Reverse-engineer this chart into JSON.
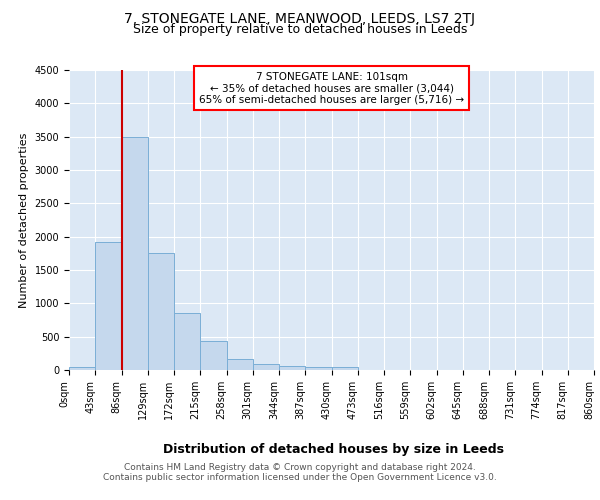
{
  "title_line1": "7, STONEGATE LANE, MEANWOOD, LEEDS, LS7 2TJ",
  "title_line2": "Size of property relative to detached houses in Leeds",
  "xlabel": "Distribution of detached houses by size in Leeds",
  "ylabel": "Number of detached properties",
  "bin_labels": [
    "0sqm",
    "43sqm",
    "86sqm",
    "129sqm",
    "172sqm",
    "215sqm",
    "258sqm",
    "301sqm",
    "344sqm",
    "387sqm",
    "430sqm",
    "473sqm",
    "516sqm",
    "559sqm",
    "602sqm",
    "645sqm",
    "688sqm",
    "731sqm",
    "774sqm",
    "817sqm",
    "860sqm"
  ],
  "bar_values": [
    50,
    1920,
    3500,
    1750,
    850,
    440,
    165,
    90,
    55,
    45,
    45,
    0,
    0,
    0,
    0,
    0,
    0,
    0,
    0,
    0
  ],
  "bar_color": "#c5d8ed",
  "bar_edge_color": "#7aaed6",
  "annotation_text": "7 STONEGATE LANE: 101sqm\n← 35% of detached houses are smaller (3,044)\n65% of semi-detached houses are larger (5,716) →",
  "annotation_box_color": "white",
  "annotation_box_edge": "red",
  "vline_color": "#cc0000",
  "ylim": [
    0,
    4500
  ],
  "yticks": [
    0,
    500,
    1000,
    1500,
    2000,
    2500,
    3000,
    3500,
    4000,
    4500
  ],
  "background_color": "#dce8f5",
  "footer_line1": "Contains HM Land Registry data © Crown copyright and database right 2024.",
  "footer_line2": "Contains public sector information licensed under the Open Government Licence v3.0.",
  "title1_fontsize": 10,
  "title2_fontsize": 9,
  "xlabel_fontsize": 9,
  "ylabel_fontsize": 8,
  "tick_fontsize": 7,
  "footer_fontsize": 6.5,
  "annotation_fontsize": 7.5
}
